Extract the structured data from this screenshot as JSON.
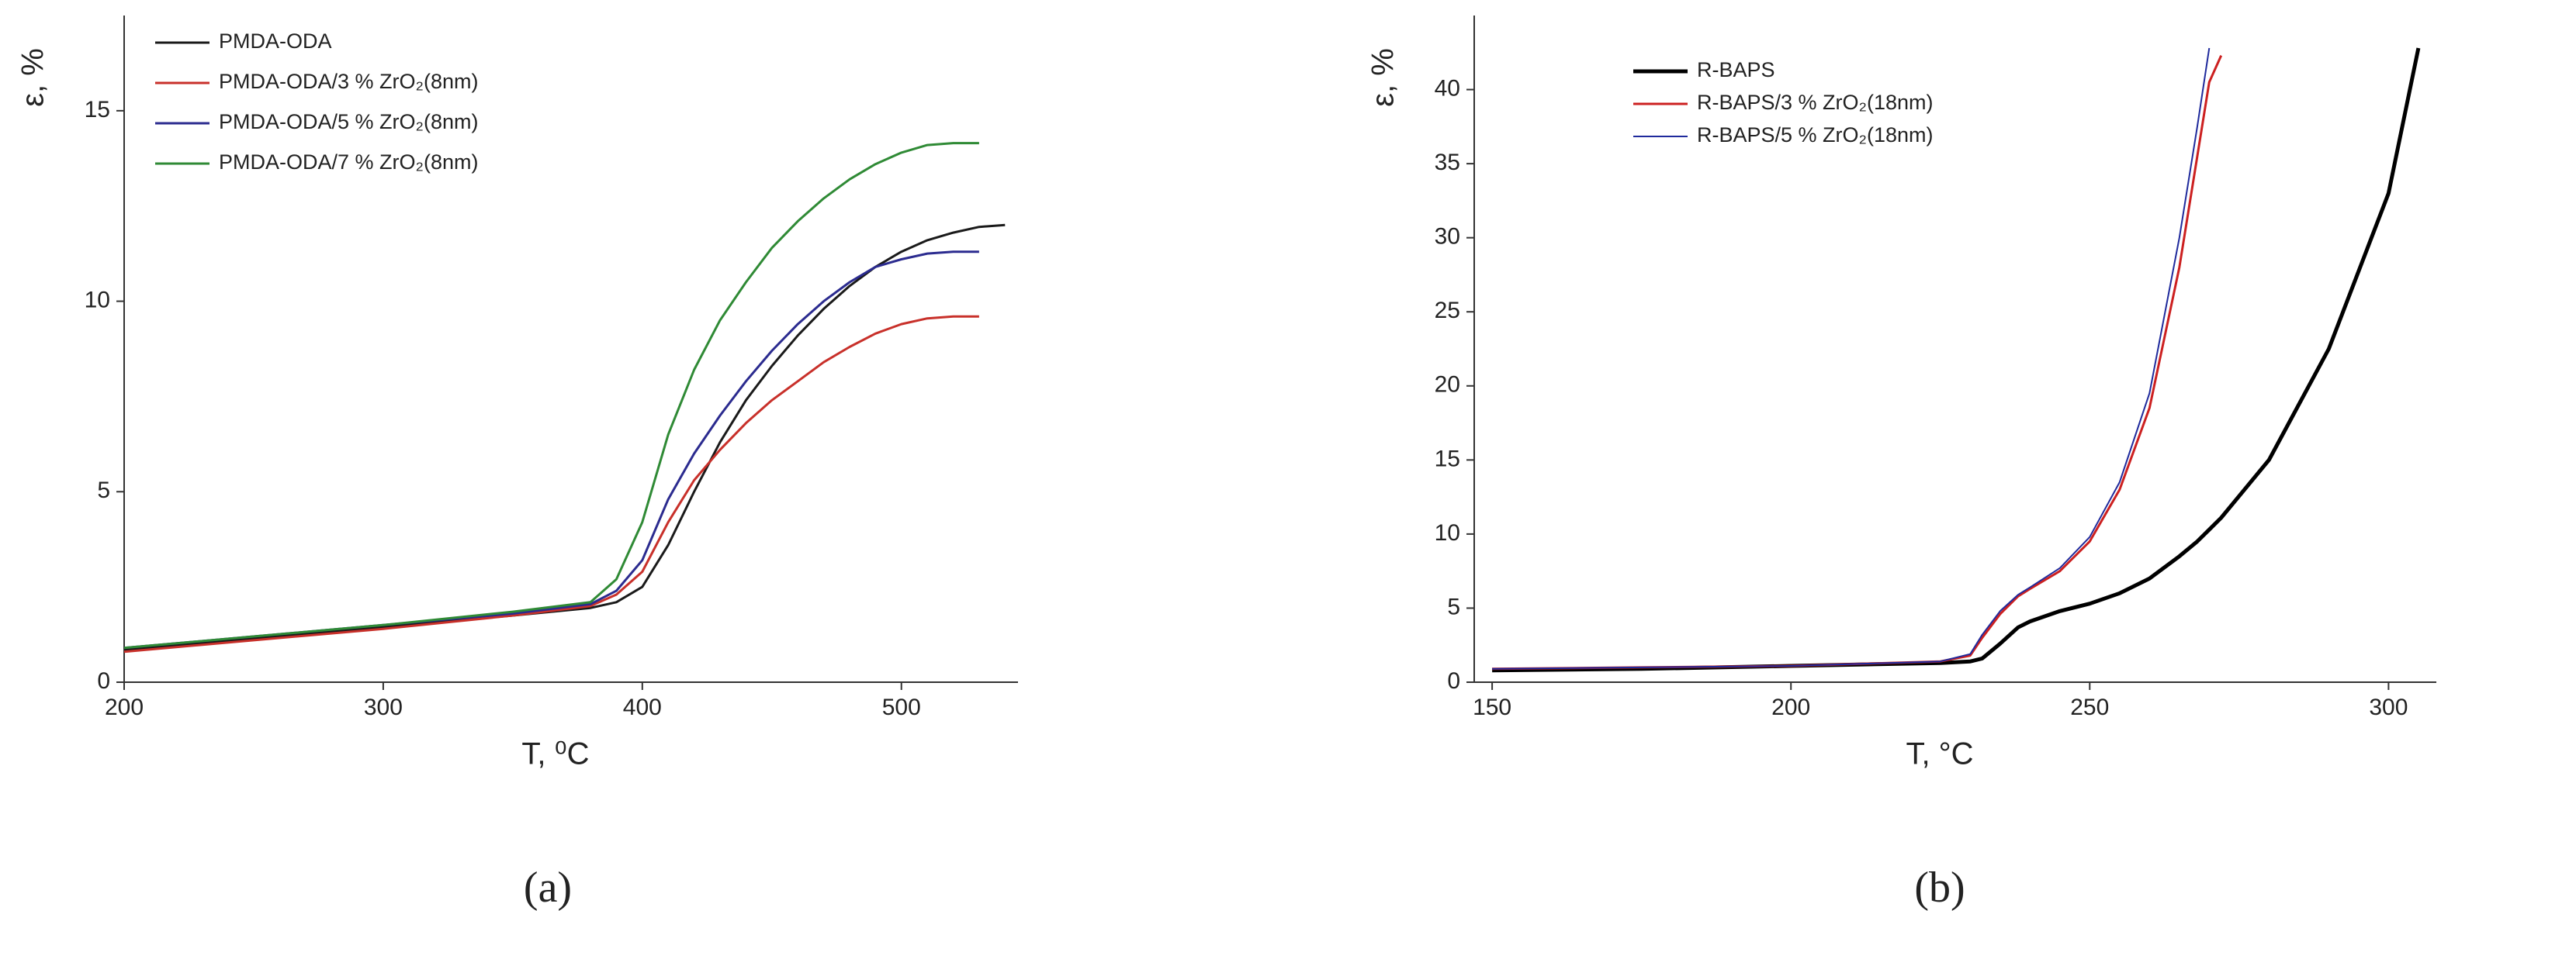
{
  "chart_data": [
    {
      "type": "line",
      "panel_label": "(a)",
      "x_label": "T, ⁰C",
      "y_label": "ε, %",
      "xlim": [
        200,
        545
      ],
      "ylim": [
        0,
        17.5
      ],
      "xticks": [
        200,
        300,
        400,
        500
      ],
      "yticks": [
        0,
        5,
        10,
        15
      ],
      "legend": "upper left",
      "x": [
        200,
        250,
        300,
        350,
        380,
        390,
        400,
        410,
        420,
        430,
        440,
        450,
        460,
        470,
        480,
        490,
        500,
        510,
        520,
        530,
        540
      ],
      "series": [
        {
          "name": "PMDA-ODA",
          "color": "#1a1a1a",
          "values": [
            0.85,
            1.15,
            1.45,
            1.75,
            1.95,
            2.1,
            2.5,
            3.6,
            5.0,
            6.3,
            7.4,
            8.3,
            9.1,
            9.8,
            10.4,
            10.9,
            11.3,
            11.6,
            11.8,
            11.95,
            12.0
          ]
        },
        {
          "name": "PMDA-ODA/3 % ZrO₂(8nm)",
          "color": "#c8302a",
          "values": [
            0.8,
            1.1,
            1.4,
            1.75,
            2.0,
            2.3,
            2.9,
            4.2,
            5.3,
            6.1,
            6.8,
            7.4,
            7.9,
            8.4,
            8.8,
            9.15,
            9.4,
            9.55,
            9.6,
            9.6,
            null
          ]
        },
        {
          "name": "PMDA-ODA/5 % ZrO₂(8nm)",
          "color": "#2b2b8f",
          "values": [
            0.9,
            1.2,
            1.5,
            1.8,
            2.05,
            2.4,
            3.2,
            4.8,
            6.0,
            7.0,
            7.9,
            8.7,
            9.4,
            10.0,
            10.5,
            10.9,
            11.1,
            11.25,
            11.3,
            11.3,
            null
          ]
        },
        {
          "name": "PMDA-ODA/7 % ZrO₂(8nm)",
          "color": "#2f8a35",
          "values": [
            0.9,
            1.2,
            1.5,
            1.85,
            2.1,
            2.7,
            4.2,
            6.5,
            8.2,
            9.5,
            10.5,
            11.4,
            12.1,
            12.7,
            13.2,
            13.6,
            13.9,
            14.1,
            14.15,
            14.15,
            null
          ]
        }
      ]
    },
    {
      "type": "line",
      "panel_label": "(b)",
      "x_label": "T, °C",
      "y_label": "ε, %",
      "xlim": [
        147,
        308
      ],
      "ylim": [
        0,
        45
      ],
      "xticks": [
        150,
        200,
        250,
        300
      ],
      "yticks": [
        0,
        5,
        10,
        15,
        20,
        25,
        30,
        35,
        40
      ],
      "legend": "upper left",
      "x": [
        150,
        175,
        200,
        225,
        230,
        232,
        235,
        238,
        240,
        245,
        250,
        255,
        260,
        265,
        268,
        270,
        272,
        280,
        290,
        300,
        305
      ],
      "series": [
        {
          "name": "R-BAPS",
          "color": "#000000",
          "values": [
            0.8,
            0.9,
            1.1,
            1.3,
            1.4,
            1.6,
            2.6,
            3.7,
            4.1,
            4.8,
            5.3,
            6.0,
            7.0,
            8.5,
            9.5,
            10.3,
            11.1,
            15.0,
            22.5,
            33.0,
            42.8
          ]
        },
        {
          "name": "R-BAPS/3 % ZrO₂(18nm)",
          "color": "#cc2020",
          "values": [
            0.9,
            1.0,
            1.1,
            1.4,
            1.8,
            3.0,
            4.6,
            5.8,
            6.3,
            7.5,
            9.5,
            13.0,
            18.5,
            28.0,
            35.5,
            40.5,
            42.3,
            null,
            null,
            null,
            null
          ]
        },
        {
          "name": "R-BAPS/5 % ZrO₂(18nm)",
          "color": "#1f2a9c",
          "values": [
            0.9,
            1.0,
            1.1,
            1.4,
            1.9,
            3.2,
            4.8,
            5.9,
            6.4,
            7.7,
            9.8,
            13.5,
            19.5,
            30.0,
            37.5,
            42.8,
            null,
            null,
            null,
            null,
            null
          ]
        }
      ]
    }
  ]
}
